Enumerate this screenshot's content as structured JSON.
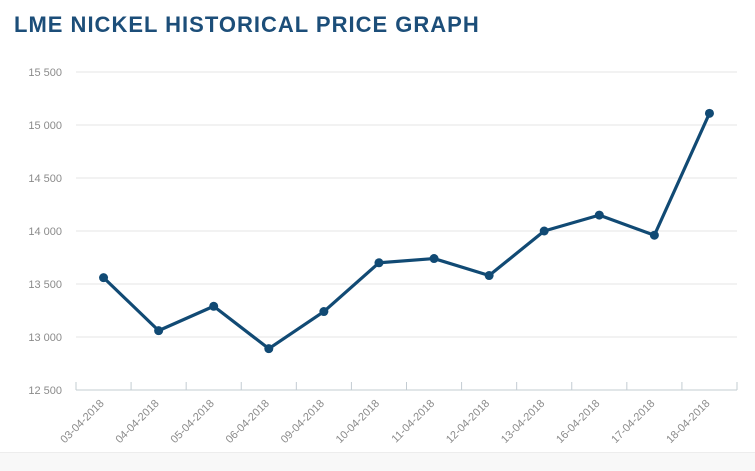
{
  "page": {
    "title": "LME NICKEL HISTORICAL PRICE GRAPH"
  },
  "chart_data": {
    "type": "line",
    "title": "LME NICKEL HISTORICAL PRICE GRAPH",
    "categories": [
      "03-04-2018",
      "04-04-2018",
      "05-04-2018",
      "06-04-2018",
      "09-04-2018",
      "10-04-2018",
      "11-04-2018",
      "12-04-2018",
      "13-04-2018",
      "16-04-2018",
      "17-04-2018",
      "18-04-2018"
    ],
    "values": [
      13560,
      13060,
      13290,
      12890,
      13240,
      13700,
      13740,
      13580,
      14000,
      14150,
      13960,
      15110
    ],
    "xlabel": "",
    "ylabel": "",
    "ylim": [
      12500,
      15500
    ],
    "yticks": [
      12500,
      13000,
      13500,
      14000,
      14500,
      15000,
      15500
    ],
    "ytick_labels": [
      "12 500",
      "13 000",
      "13 500",
      "14 000",
      "14 500",
      "15 000",
      "15 500"
    ],
    "grid": "horizontal",
    "legend": "none",
    "marker": "circle",
    "colors": {
      "line": "#114a74",
      "marker": "#114a74",
      "title": "#1c4e79",
      "axis_labels": "#8b8b8b",
      "gridline": "#e6e6e6",
      "axis_line": "#c3ccd2",
      "background": "#ffffff",
      "footer_strip": "#f8f8f8"
    }
  }
}
